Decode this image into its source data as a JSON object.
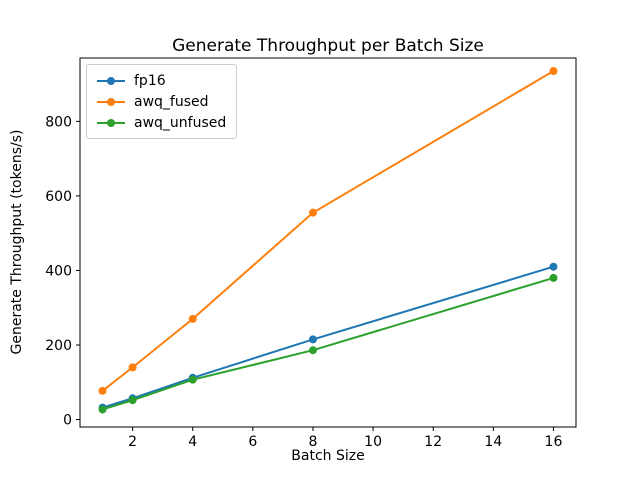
{
  "figure": {
    "title": "Generate Throughput per Batch Size",
    "xlabel": "Batch Size",
    "ylabel": "Generate Throughput (tokens/s)"
  },
  "chart_data": {
    "type": "line",
    "title": "Generate Throughput per Batch Size",
    "xlabel": "Batch Size",
    "ylabel": "Generate Throughput (tokens/s)",
    "x": [
      1,
      2,
      4,
      8,
      16
    ],
    "series": [
      {
        "name": "fp16",
        "color": "#1f77b4",
        "values": [
          32,
          57,
          112,
          215,
          410
        ]
      },
      {
        "name": "awq_fused",
        "color": "#ff7f0e",
        "values": [
          77,
          140,
          270,
          555,
          935
        ]
      },
      {
        "name": "awq_unfused",
        "color": "#2ca02c",
        "values": [
          27,
          52,
          107,
          186,
          380
        ]
      }
    ],
    "xticks": [
      2,
      4,
      6,
      8,
      10,
      12,
      14,
      16
    ],
    "yticks": [
      0,
      200,
      400,
      600,
      800
    ],
    "xlim": [
      0.25,
      16.75
    ],
    "ylim": [
      -20,
      970
    ],
    "grid": false,
    "legend_position": "upper left",
    "marker": "o",
    "axis_color": "#000000",
    "background_color": "#ffffff"
  }
}
